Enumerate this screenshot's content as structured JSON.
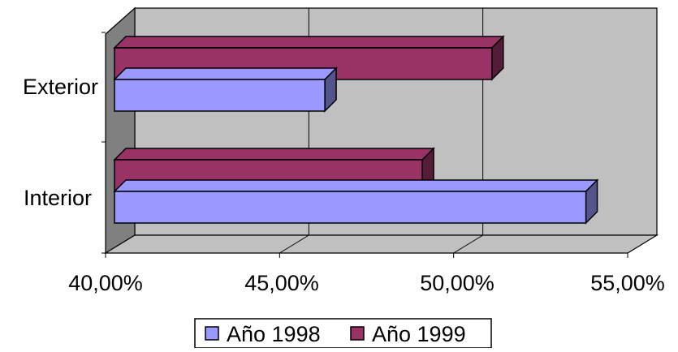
{
  "colors": {
    "series_1998": "#9999ff",
    "series_1999": "#993366",
    "back_wall": "#c0c0c0",
    "side_wall": "#808080",
    "floor": "#c0c0c0",
    "outline": "#000000"
  },
  "chart_data": {
    "type": "bar",
    "orientation": "horizontal",
    "style": "3d-clustered",
    "categories": [
      "Interior",
      "Exterior"
    ],
    "series": [
      {
        "name": "Año 1998",
        "values": [
          0.538,
          0.463
        ]
      },
      {
        "name": "Año 1999",
        "values": [
          0.491,
          0.511
        ]
      }
    ],
    "xlim": [
      0.4,
      0.55
    ],
    "x_ticks": [
      "40,00%",
      "45,00%",
      "50,00%",
      "55,00%"
    ],
    "gridlines": true,
    "legend_position": "bottom",
    "title": "",
    "xlabel": "",
    "ylabel": ""
  }
}
